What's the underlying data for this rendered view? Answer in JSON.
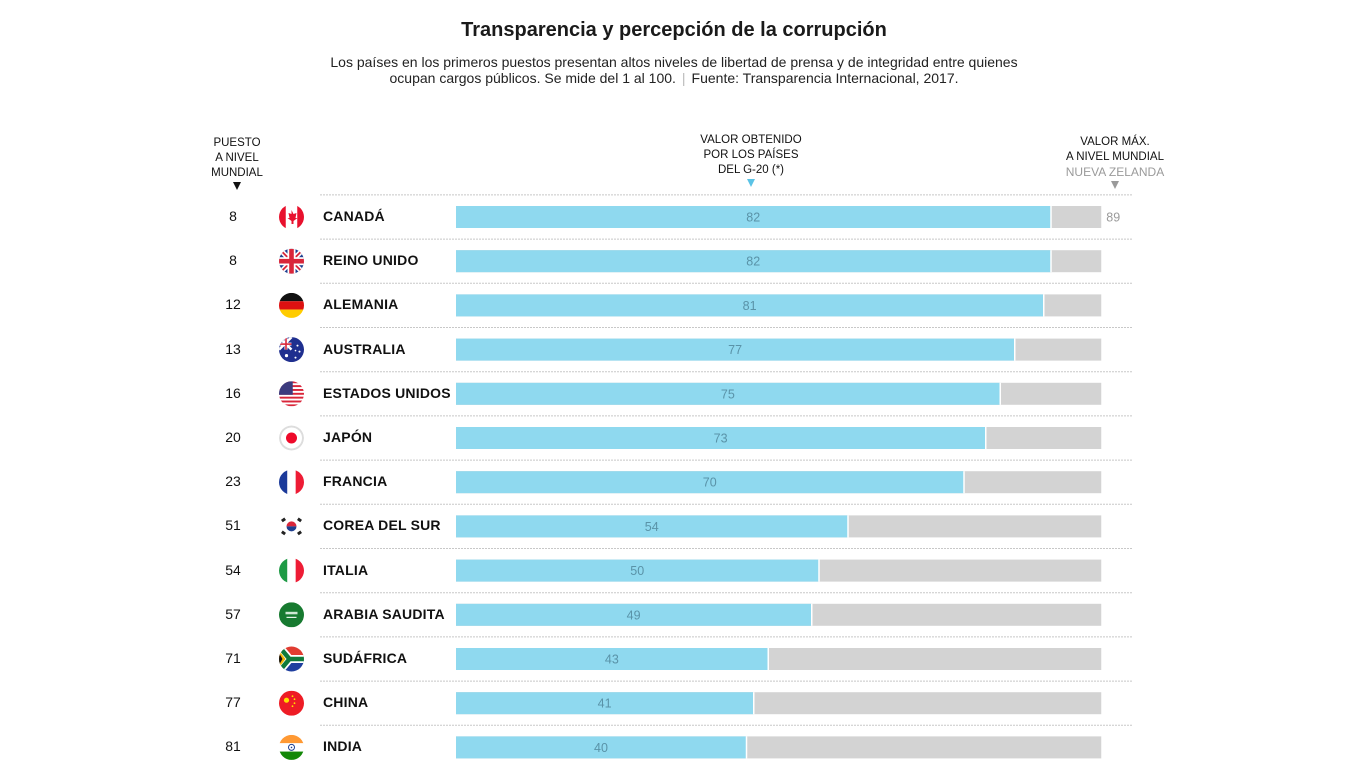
{
  "header": {
    "title": "Transparencia y percepción de la corrupción",
    "subtitle_line1": "Los países en los primeros puestos presentan altos niveles de libertad de prensa y de integridad entre quienes",
    "subtitle_line2": "ocupan cargos públicos. Se mide del 1 al 100.",
    "separator": "|",
    "source": "Fuente: Transparencia Internacional, 2017."
  },
  "column_headers": {
    "rank_line1": "PUESTO",
    "rank_line2": "A NIVEL",
    "rank_line3": "MUNDIAL",
    "g20_line1": "VALOR OBTENIDO",
    "g20_line2": "POR LOS PAÍSES",
    "g20_line3": "DEL G-20 (*)",
    "max_line1": "VALOR MÁX.",
    "max_line2": "A NIVEL MUNDIAL",
    "max_line3": "NUEVA ZELANDA"
  },
  "colors": {
    "value_bar": "#8fd9ef",
    "max_bar": "#d3d3d3",
    "value_label": "#5a93a8",
    "max_label": "#9a9a9a",
    "separator": "#c8c8c8"
  },
  "chart_data": {
    "type": "bar",
    "orientation": "horizontal",
    "title": "Transparencia y percepción de la corrupción",
    "scale": [
      1,
      100
    ],
    "max_value": 89,
    "max_value_label": "89",
    "max_country": "NUEVA ZELANDA",
    "categories": [
      "CANADÁ",
      "REINO UNIDO",
      "ALEMANIA",
      "AUSTRALIA",
      "ESTADOS UNIDOS",
      "JAPÓN",
      "FRANCIA",
      "COREA DEL SUR",
      "ITALIA",
      "ARABIA SAUDITA",
      "SUDÁFRICA",
      "CHINA",
      "INDIA"
    ],
    "ranks": [
      "8",
      "8",
      "12",
      "13",
      "16",
      "20",
      "23",
      "51",
      "54",
      "57",
      "71",
      "77",
      "81"
    ],
    "flags": [
      "canada-flag-icon",
      "uk-flag-icon",
      "germany-flag-icon",
      "australia-flag-icon",
      "usa-flag-icon",
      "japan-flag-icon",
      "france-flag-icon",
      "south-korea-flag-icon",
      "italy-flag-icon",
      "saudi-arabia-flag-icon",
      "south-africa-flag-icon",
      "china-flag-icon",
      "india-flag-icon"
    ],
    "series": [
      {
        "name": "Valor obtenido",
        "values": [
          82,
          82,
          81,
          77,
          75,
          73,
          70,
          54,
          50,
          49,
          43,
          41,
          40
        ]
      },
      {
        "name": "Valor máx. a nivel mundial (Nueva Zelanda)",
        "values": [
          89,
          89,
          89,
          89,
          89,
          89,
          89,
          89,
          89,
          89,
          89,
          89,
          89
        ]
      }
    ],
    "legend": "top"
  }
}
